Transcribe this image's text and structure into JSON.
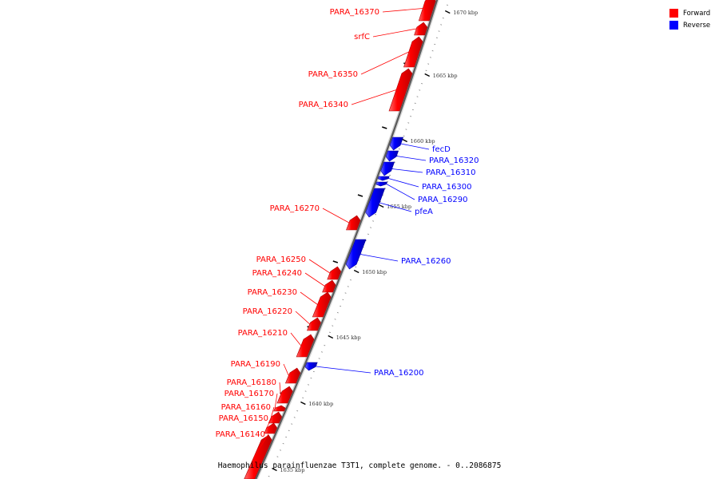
{
  "caption": "Haemophilus parainfluenzae T3T1, complete genome. - 0..2086875",
  "legend": [
    {
      "label": "Forward",
      "color": "#ff0000"
    },
    {
      "label": "Reverse",
      "color": "#0000ff"
    }
  ],
  "scale": {
    "ticks": [
      "1670 kbp",
      "1665 kbp",
      "1660 kbp",
      "1655 kbp",
      "1650 kbp",
      "1645 kbp",
      "1640 kbp",
      "1635 kbp"
    ]
  },
  "genes": [
    {
      "name": "PARA_16370",
      "strand": "forward"
    },
    {
      "name": "srfC",
      "strand": "forward"
    },
    {
      "name": "PARA_16350",
      "strand": "forward"
    },
    {
      "name": "PARA_16340",
      "strand": "forward"
    },
    {
      "name": "fecD",
      "strand": "reverse"
    },
    {
      "name": "PARA_16320",
      "strand": "reverse"
    },
    {
      "name": "PARA_16310",
      "strand": "reverse"
    },
    {
      "name": "PARA_16300",
      "strand": "reverse"
    },
    {
      "name": "PARA_16290",
      "strand": "reverse"
    },
    {
      "name": "pfeA",
      "strand": "reverse"
    },
    {
      "name": "PARA_16270",
      "strand": "forward"
    },
    {
      "name": "PARA_16260",
      "strand": "reverse"
    },
    {
      "name": "PARA_16250",
      "strand": "forward"
    },
    {
      "name": "PARA_16240",
      "strand": "forward"
    },
    {
      "name": "PARA_16230",
      "strand": "forward"
    },
    {
      "name": "PARA_16220",
      "strand": "forward"
    },
    {
      "name": "PARA_16210",
      "strand": "forward"
    },
    {
      "name": "PARA_16200",
      "strand": "reverse"
    },
    {
      "name": "PARA_16190",
      "strand": "forward"
    },
    {
      "name": "PARA_16180",
      "strand": "forward"
    },
    {
      "name": "PARA_16170",
      "strand": "forward"
    },
    {
      "name": "PARA_16160",
      "strand": "forward"
    },
    {
      "name": "PARA_16150",
      "strand": "forward"
    },
    {
      "name": "PARA_16140",
      "strand": "forward"
    }
  ]
}
